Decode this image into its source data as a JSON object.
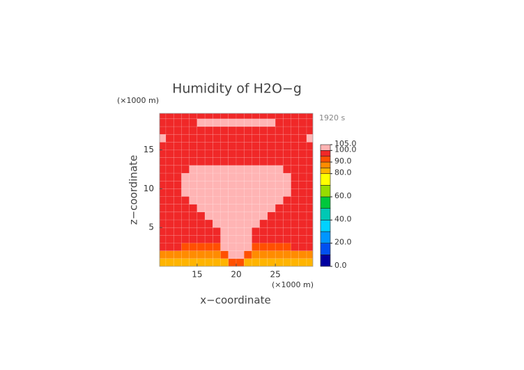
{
  "chart_data": {
    "type": "contour",
    "title": "Humidity of H2O−g",
    "time_label": "1920 s",
    "x_label": "x−coordinate",
    "y_label": "z−coordinate",
    "x_unit": "(×1000 m)",
    "y_unit": "(×1000 m)",
    "xlim": [
      10.2,
      29.8
    ],
    "ylim": [
      0,
      19.7
    ],
    "xticks": [
      15,
      20,
      25
    ],
    "yticks": [
      5,
      10,
      15
    ],
    "x": [
      10.5,
      11.5,
      12.5,
      13.5,
      14.5,
      15.5,
      16.5,
      17.5,
      18.5,
      19.5,
      20.5,
      21.5,
      22.5,
      23.5,
      24.5,
      25.5,
      26.5,
      27.5,
      28.5,
      29.5
    ],
    "y": [
      0.5,
      1.5,
      2.5,
      3.5,
      4.5,
      5.5,
      6.5,
      7.5,
      8.5,
      9.5,
      10.5,
      11.5,
      12.5,
      13.5,
      14.5,
      15.5,
      16.5,
      17.5,
      18.5,
      19.5
    ],
    "values": [
      [
        83,
        83,
        83,
        83,
        83,
        83,
        83,
        83,
        83,
        92,
        92,
        83,
        83,
        83,
        83,
        83,
        83,
        83,
        83,
        83
      ],
      [
        88,
        88,
        88,
        88,
        88,
        88,
        88,
        88,
        92,
        102,
        102,
        92,
        88,
        88,
        88,
        88,
        88,
        88,
        88,
        88
      ],
      [
        97,
        97,
        97,
        92,
        92,
        92,
        92,
        92,
        102,
        102,
        102,
        102,
        92,
        92,
        92,
        92,
        92,
        97,
        97,
        97
      ],
      [
        97,
        97,
        97,
        97,
        97,
        97,
        97,
        97,
        102,
        102,
        102,
        102,
        97,
        97,
        97,
        97,
        97,
        97,
        97,
        97
      ],
      [
        97,
        97,
        97,
        97,
        97,
        97,
        97,
        97,
        102,
        102,
        102,
        102,
        97,
        97,
        97,
        97,
        97,
        97,
        97,
        97
      ],
      [
        97,
        97,
        97,
        97,
        97,
        97,
        97,
        102,
        102,
        102,
        102,
        102,
        102,
        97,
        97,
        97,
        97,
        97,
        97,
        97
      ],
      [
        97,
        97,
        97,
        97,
        97,
        97,
        102,
        102,
        102,
        102,
        102,
        102,
        102,
        102,
        97,
        97,
        97,
        97,
        97,
        97
      ],
      [
        97,
        97,
        97,
        97,
        97,
        102,
        102,
        102,
        102,
        102,
        102,
        102,
        102,
        102,
        102,
        97,
        97,
        97,
        97,
        97
      ],
      [
        97,
        97,
        97,
        97,
        102,
        102,
        102,
        102,
        102,
        102,
        102,
        102,
        102,
        102,
        102,
        102,
        97,
        97,
        97,
        97
      ],
      [
        97,
        97,
        97,
        102,
        102,
        102,
        102,
        102,
        102,
        102,
        102,
        102,
        102,
        102,
        102,
        102,
        102,
        97,
        97,
        97
      ],
      [
        97,
        97,
        97,
        102,
        102,
        102,
        102,
        102,
        102,
        102,
        102,
        102,
        102,
        102,
        102,
        102,
        102,
        97,
        97,
        97
      ],
      [
        97,
        97,
        97,
        102,
        102,
        102,
        102,
        102,
        102,
        102,
        102,
        102,
        102,
        102,
        102,
        102,
        102,
        97,
        97,
        97
      ],
      [
        97,
        97,
        97,
        97,
        102,
        102,
        102,
        102,
        102,
        102,
        102,
        102,
        102,
        102,
        102,
        102,
        97,
        97,
        97,
        97
      ],
      [
        97,
        97,
        97,
        97,
        97,
        97,
        97,
        97,
        97,
        97,
        97,
        97,
        97,
        97,
        97,
        97,
        97,
        97,
        97,
        97
      ],
      [
        97,
        97,
        97,
        97,
        97,
        97,
        97,
        97,
        97,
        97,
        97,
        97,
        97,
        97,
        97,
        97,
        97,
        97,
        97,
        97
      ],
      [
        97,
        97,
        97,
        97,
        97,
        97,
        97,
        97,
        97,
        97,
        97,
        97,
        97,
        97,
        97,
        97,
        97,
        97,
        97,
        97
      ],
      [
        102,
        97,
        97,
        97,
        97,
        97,
        97,
        97,
        97,
        97,
        97,
        97,
        97,
        97,
        97,
        97,
        97,
        97,
        97,
        102
      ],
      [
        97,
        97,
        97,
        97,
        97,
        97,
        97,
        97,
        97,
        97,
        97,
        97,
        97,
        97,
        97,
        97,
        97,
        97,
        97,
        97
      ],
      [
        97,
        97,
        97,
        97,
        97,
        102,
        102,
        102,
        102,
        102,
        102,
        102,
        102,
        102,
        102,
        97,
        97,
        97,
        97,
        97
      ],
      [
        97,
        97,
        97,
        97,
        97,
        97,
        97,
        97,
        97,
        97,
        97,
        97,
        97,
        97,
        97,
        97,
        97,
        97,
        97,
        97
      ]
    ],
    "colorbar": {
      "levels": [
        0,
        10,
        20,
        30,
        40,
        50,
        60,
        70,
        80,
        85,
        90,
        95,
        100,
        105
      ],
      "colors": [
        "#0000a0",
        "#0050f0",
        "#0096ff",
        "#00d2ff",
        "#00c8b4",
        "#00c83c",
        "#96dc00",
        "#ffff00",
        "#ffb400",
        "#ff8c00",
        "#ff5000",
        "#f02828",
        "#ffb4b4"
      ],
      "ticks": [
        {
          "value": 0,
          "label": "0.0"
        },
        {
          "value": 20,
          "label": "20.0"
        },
        {
          "value": 40,
          "label": "40.0"
        },
        {
          "value": 60,
          "label": "60.0"
        },
        {
          "value": 80,
          "label": "80.0"
        },
        {
          "value": 90,
          "label": "90.0"
        },
        {
          "value": 100,
          "label": "100.0"
        },
        {
          "value": 105,
          "label": "105.0"
        }
      ]
    }
  }
}
